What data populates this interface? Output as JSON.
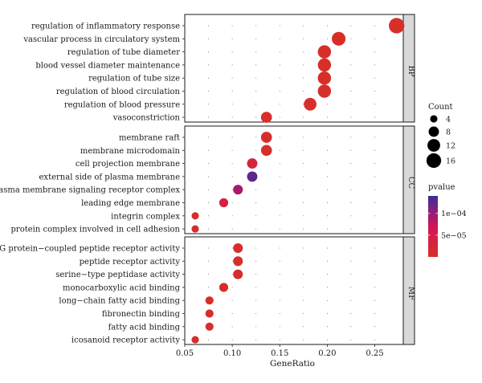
{
  "chart_data": {
    "type": "scatter",
    "subtype": "dot-plot",
    "xlabel": "GeneRatio",
    "ylabel": "",
    "xlim": [
      0.05,
      0.28
    ],
    "xticks": [
      0.05,
      0.1,
      0.15,
      0.2,
      0.25
    ],
    "xtick_labels": [
      "0.05",
      "0.10",
      "0.15",
      "0.20",
      "0.25"
    ],
    "grid": true,
    "size_legend": {
      "title": "Count",
      "values": [
        4,
        8,
        12,
        16
      ],
      "labels": [
        "4",
        "8",
        "12",
        "16"
      ]
    },
    "color_legend": {
      "title": "pvalue",
      "low_color": "#d73027",
      "mid_color": "#d4145a",
      "high_color": "#3b2d97",
      "range": [
        0,
        0.00014
      ],
      "ticks": [
        5e-05,
        0.0001
      ],
      "tick_labels": [
        "5e−05",
        "1e−04"
      ]
    },
    "panels": [
      {
        "label": "BP",
        "terms": [
          {
            "term": "regulation of inflammatory response",
            "x": 0.273,
            "count": 18,
            "pvalue": 1e-06
          },
          {
            "term": "vascular process in circulatory system",
            "x": 0.212,
            "count": 14,
            "pvalue": 2e-06
          },
          {
            "term": "regulation of tube diameter",
            "x": 0.197,
            "count": 13,
            "pvalue": 2e-06
          },
          {
            "term": "blood vessel diameter maintenance",
            "x": 0.197,
            "count": 13,
            "pvalue": 2e-06
          },
          {
            "term": "regulation of tube size",
            "x": 0.197,
            "count": 13,
            "pvalue": 2e-06
          },
          {
            "term": "regulation of blood circulation",
            "x": 0.197,
            "count": 13,
            "pvalue": 3e-06
          },
          {
            "term": "regulation of blood pressure",
            "x": 0.182,
            "count": 12,
            "pvalue": 3e-06
          },
          {
            "term": "vasoconstriction",
            "x": 0.136,
            "count": 9,
            "pvalue": 4e-06
          }
        ]
      },
      {
        "label": "CC",
        "terms": [
          {
            "term": "membrane raft",
            "x": 0.136,
            "count": 9,
            "pvalue": 4e-06
          },
          {
            "term": "membrane microdomain",
            "x": 0.136,
            "count": 9,
            "pvalue": 4e-06
          },
          {
            "term": "cell projection membrane",
            "x": 0.121,
            "count": 8,
            "pvalue": 3e-05
          },
          {
            "term": "external side of plasma membrane",
            "x": 0.121,
            "count": 8,
            "pvalue": 0.000125
          },
          {
            "term": "plasma membrane signaling receptor complex",
            "x": 0.106,
            "count": 7,
            "pvalue": 9e-05
          },
          {
            "term": "leading edge membrane",
            "x": 0.091,
            "count": 6,
            "pvalue": 4e-05
          },
          {
            "term": "integrin complex",
            "x": 0.061,
            "count": 4,
            "pvalue": 8e-06
          },
          {
            "term": "protein complex involved in cell adhesion",
            "x": 0.061,
            "count": 4,
            "pvalue": 9e-06
          }
        ]
      },
      {
        "label": "MF",
        "terms": [
          {
            "term": "G protein−coupled peptide receptor activity",
            "x": 0.106,
            "count": 7,
            "pvalue": 8e-06
          },
          {
            "term": "peptide receptor activity",
            "x": 0.106,
            "count": 7,
            "pvalue": 8e-06
          },
          {
            "term": "serine−type peptidase activity",
            "x": 0.106,
            "count": 7,
            "pvalue": 9e-06
          },
          {
            "term": "monocarboxylic acid binding",
            "x": 0.091,
            "count": 6,
            "pvalue": 7e-06
          },
          {
            "term": "long−chain fatty acid binding",
            "x": 0.076,
            "count": 5,
            "pvalue": 6e-06
          },
          {
            "term": "fibronectin binding",
            "x": 0.076,
            "count": 5,
            "pvalue": 6e-06
          },
          {
            "term": "fatty acid binding",
            "x": 0.076,
            "count": 5,
            "pvalue": 7e-06
          },
          {
            "term": "icosanoid receptor activity",
            "x": 0.061,
            "count": 4,
            "pvalue": 8e-06
          }
        ]
      }
    ]
  }
}
